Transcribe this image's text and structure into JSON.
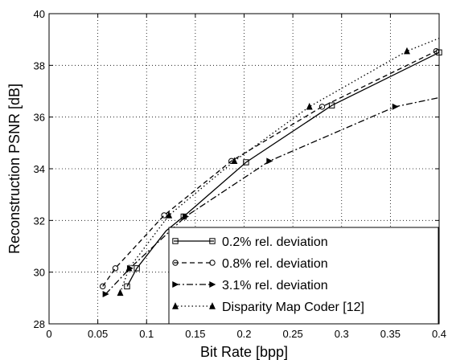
{
  "chart_data": {
    "type": "line",
    "xlabel": "Bit Rate [bpp]",
    "ylabel": "Reconstruction PSNR [dB]",
    "xlim": [
      0,
      0.4
    ],
    "ylim": [
      28,
      40
    ],
    "xticks": [
      "0",
      "0.05",
      "0.1",
      "0.15",
      "0.2",
      "0.25",
      "0.3",
      "0.35",
      "0.4"
    ],
    "yticks": [
      "28",
      "30",
      "32",
      "34",
      "36",
      "38",
      "40"
    ],
    "grid": "dotted",
    "legend_position": "bottom-right",
    "series": [
      {
        "name": "0.2% rel. deviation",
        "line_style": "solid",
        "marker": "square",
        "x": [
          0.08,
          0.09,
          0.12,
          0.138,
          0.202,
          0.29,
          0.4
        ],
        "y": [
          29.45,
          30.15,
          31.6,
          32.15,
          34.25,
          36.45,
          38.5
        ],
        "marker_points": [
          [
            0.08,
            29.45
          ],
          [
            0.09,
            30.15
          ],
          [
            0.138,
            32.15
          ],
          [
            0.202,
            34.25
          ],
          [
            0.29,
            36.45
          ],
          [
            0.4,
            38.5
          ]
        ]
      },
      {
        "name": "0.8% rel. deviation",
        "line_style": "dashed",
        "marker": "circle",
        "x": [
          0.055,
          0.068,
          0.118,
          0.187,
          0.28,
          0.397
        ],
        "y": [
          29.45,
          30.15,
          32.2,
          34.3,
          36.4,
          38.55
        ],
        "marker_points": [
          [
            0.055,
            29.45
          ],
          [
            0.068,
            30.15
          ],
          [
            0.118,
            32.2
          ],
          [
            0.187,
            34.3
          ],
          [
            0.28,
            36.4
          ],
          [
            0.397,
            38.55
          ]
        ]
      },
      {
        "name": "3.1% rel. deviation",
        "line_style": "dashdot",
        "marker": "triangle-right",
        "x": [
          0.058,
          0.083,
          0.14,
          0.226,
          0.355,
          0.4
        ],
        "y": [
          29.15,
          30.15,
          32.15,
          34.3,
          36.4,
          36.75
        ],
        "marker_points": [
          [
            0.058,
            29.15
          ],
          [
            0.083,
            30.15
          ],
          [
            0.14,
            32.15
          ],
          [
            0.226,
            34.3
          ],
          [
            0.355,
            36.4
          ]
        ]
      },
      {
        "name": "Disparity Map Coder [12]",
        "line_style": "dotted",
        "marker": "triangle-up",
        "x": [
          0.073,
          0.082,
          0.123,
          0.19,
          0.267,
          0.367,
          0.4
        ],
        "y": [
          29.2,
          30.15,
          32.2,
          34.3,
          36.4,
          38.55,
          39.05
        ],
        "marker_points": [
          [
            0.073,
            29.2
          ],
          [
            0.082,
            30.15
          ],
          [
            0.123,
            32.2
          ],
          [
            0.19,
            34.3
          ],
          [
            0.267,
            36.4
          ],
          [
            0.367,
            38.55
          ]
        ]
      }
    ]
  }
}
